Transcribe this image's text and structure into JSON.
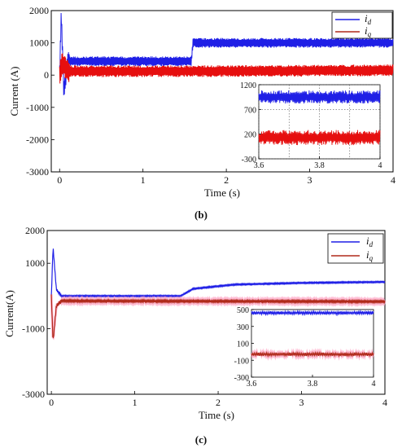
{
  "colors": {
    "id": "#1f1fe6",
    "iq": "#e60f0f",
    "iq_c": "#b02a1a",
    "iq_c_halo": "#ff9ec0"
  },
  "chart_data": [
    {
      "type": "line",
      "panel_label": "(b)",
      "xlabel": "Time (s)",
      "ylabel": "Current (A)",
      "xlim": [
        -0.1,
        4
      ],
      "ylim": [
        -3000,
        2000
      ],
      "xticks": [
        "0",
        "1",
        "2",
        "3",
        "4"
      ],
      "yticks": [
        "-3000",
        "-2000",
        "-1000",
        "0",
        "1000",
        "2000"
      ],
      "grid": false,
      "legend": "top-right",
      "series": [
        {
          "name": "d",
          "x": [
            0,
            0.02,
            0.05,
            0.1,
            1.58,
            1.6,
            4
          ],
          "y": [
            0,
            1900,
            -500,
            430,
            430,
            1000,
            1000
          ],
          "ripple": 150
        },
        {
          "name": "q",
          "x": [
            0,
            0.03,
            0.1,
            1.58,
            1.6,
            4
          ],
          "y": [
            0,
            400,
            120,
            120,
            120,
            150
          ],
          "ripple": 180
        }
      ],
      "inset": {
        "xlim": [
          3.6,
          4
        ],
        "ylim": [
          -300,
          1200
        ],
        "xticks": [
          "3.6",
          "3.8",
          "4"
        ],
        "yticks": [
          "-300",
          "200",
          "700",
          "1200"
        ],
        "grid": true,
        "series": [
          {
            "name": "d",
            "y": 950,
            "ripple": 150
          },
          {
            "name": "q",
            "y": 130,
            "ripple": 170
          }
        ]
      }
    },
    {
      "type": "line",
      "panel_label": "(c)",
      "xlabel": "Time (s)",
      "ylabel": "Current(A)",
      "xlim": [
        -0.05,
        4
      ],
      "ylim": [
        -3000,
        2000
      ],
      "xticks": [
        "0",
        "1",
        "2",
        "3",
        "4"
      ],
      "yticks": [
        "-3000",
        "-1000",
        "1000",
        "2000"
      ],
      "grid": false,
      "legend": "top-right",
      "series": [
        {
          "name": "d",
          "x": [
            0,
            0.02,
            0.06,
            0.12,
            1.55,
            1.7,
            2.2,
            3,
            4
          ],
          "y": [
            0,
            1500,
            200,
            0,
            0,
            220,
            350,
            400,
            430
          ],
          "ripple": 20
        },
        {
          "name": "q",
          "x": [
            0,
            0.02,
            0.06,
            0.12,
            4
          ],
          "y": [
            0,
            -1400,
            -300,
            -150,
            -170
          ],
          "ripple": 30
        }
      ],
      "inset": {
        "xlim": [
          3.6,
          4
        ],
        "ylim": [
          -300,
          500
        ],
        "xticks": [
          "3.6",
          "3.8",
          "4"
        ],
        "yticks": [
          "-300",
          "-100",
          "100",
          "300",
          "500"
        ],
        "grid": false,
        "series": [
          {
            "name": "d",
            "y": 460,
            "ripple": 25
          },
          {
            "name": "q",
            "y": -30,
            "ripple": 25
          }
        ]
      }
    }
  ],
  "legend_labels": [
    "i",
    "i"
  ]
}
